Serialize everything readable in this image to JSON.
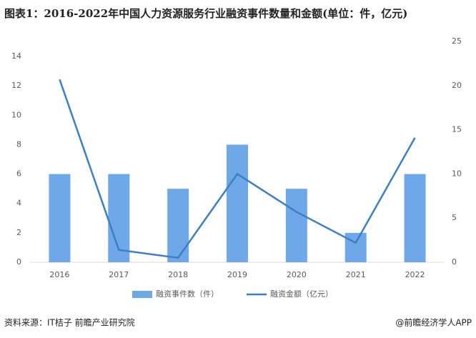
{
  "chart_data": {
    "type": "bar_line",
    "title": "图表1：2016-2022年中国人力资源服务行业融资事件数量和金额(单位：件，亿元)",
    "categories": [
      "2016",
      "2017",
      "2018",
      "2019",
      "2020",
      "2021",
      "2022"
    ],
    "series": [
      {
        "name": "融资事件数（件）",
        "color": "#6fa8e8",
        "kind": "bar",
        "axis": "y",
        "values": [
          6,
          6,
          5,
          8,
          5,
          2,
          6
        ]
      },
      {
        "name": "融资金额（亿元）",
        "color": "#3d7fc6",
        "kind": "line",
        "axis": "y2",
        "values": [
          20.7,
          1.4,
          0.5,
          10,
          5.7,
          2.2,
          14.1
        ]
      }
    ],
    "ylim": [
      0,
      14
    ],
    "yticks": [
      0,
      2,
      4,
      6,
      8,
      10,
      12,
      14
    ],
    "y2lim": [
      0,
      25
    ],
    "y2ticks": [
      0,
      5,
      10,
      15,
      20,
      25
    ],
    "source": "资料来源：IT桔子 前瞻产业研究院",
    "credit": "@前瞻经济学人APP"
  }
}
